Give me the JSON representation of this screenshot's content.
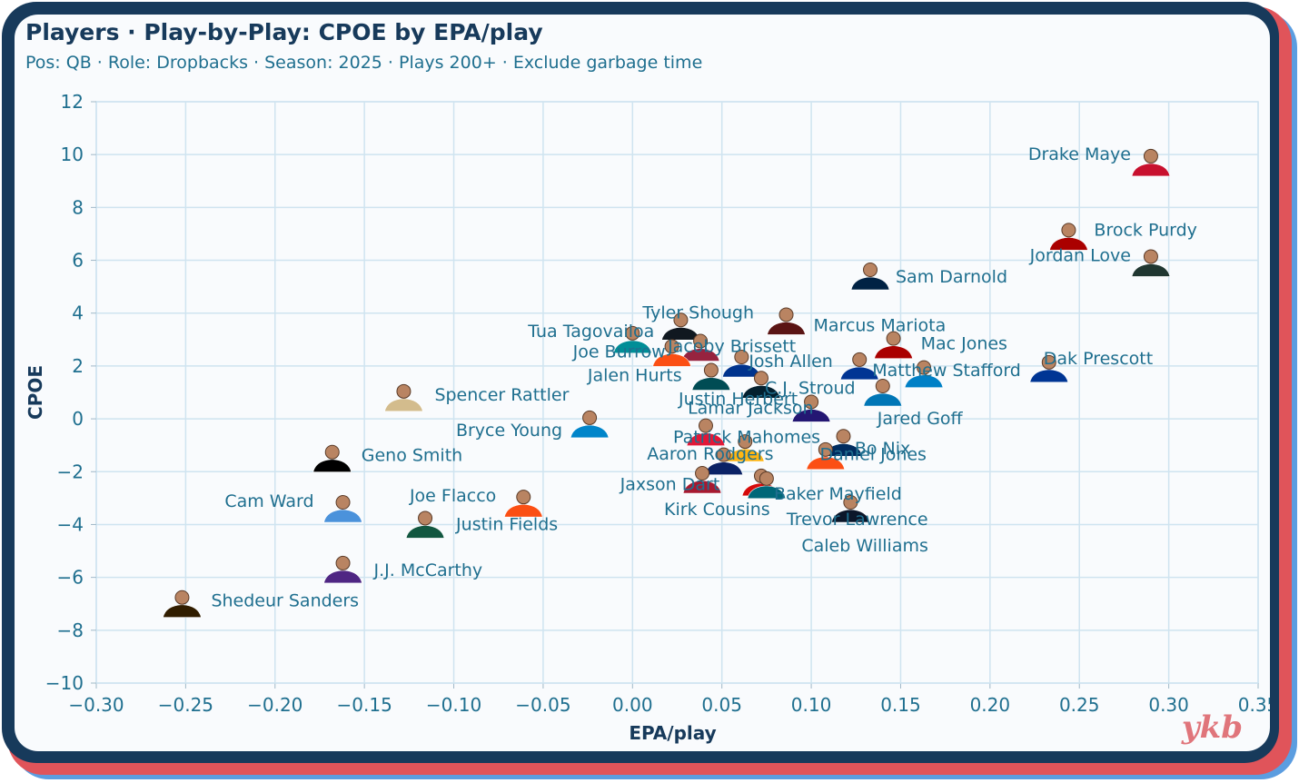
{
  "header": {
    "title": "Players · Play-by-Play: CPOE by EPA/play",
    "subtitle": "Pos: QB · Role: Dropbacks · Season: 2025 · Plays 200+ · Exclude garbage time"
  },
  "brand": "ykb",
  "colors": {
    "text": "#173a5b",
    "label": "#1f6f8f",
    "grid": "#cfe4f0",
    "frame_red": "#e0545a",
    "frame_blue": "#5b9de0"
  },
  "chart_data": {
    "type": "scatter",
    "xlabel": "EPA/play",
    "ylabel": "CPOE",
    "xlim": [
      -0.3,
      0.35
    ],
    "ylim": [
      -10,
      12
    ],
    "xticks": [
      "−0.30",
      "−0.25",
      "−0.20",
      "−0.15",
      "−0.10",
      "−0.05",
      "0.00",
      "0.05",
      "0.10",
      "0.15",
      "0.20",
      "0.25",
      "0.30",
      "0.35"
    ],
    "yticks": [
      "12",
      "10",
      "8",
      "6",
      "4",
      "2",
      "0",
      "−2",
      "−4",
      "−6",
      "−8",
      "−10"
    ],
    "grid": true,
    "points": [
      {
        "name": "Drake Maye",
        "x": 0.29,
        "y": 9.7,
        "jersey": "#c8102e"
      },
      {
        "name": "Brock Purdy",
        "x": 0.244,
        "y": 6.9,
        "jersey": "#aa0000"
      },
      {
        "name": "Jordan Love",
        "x": 0.29,
        "y": 5.9,
        "jersey": "#203731"
      },
      {
        "name": "Sam Darnold",
        "x": 0.133,
        "y": 5.4,
        "jersey": "#002244"
      },
      {
        "name": "Tyler Shough",
        "x": 0.027,
        "y": 3.5,
        "jersey": "#101820"
      },
      {
        "name": "Marcus Mariota",
        "x": 0.086,
        "y": 3.7,
        "jersey": "#5a1414"
      },
      {
        "name": "Tua Tagovailoa",
        "x": 0.0,
        "y": 3.0,
        "jersey": "#008e97"
      },
      {
        "name": "Jacoby Brissett",
        "x": 0.038,
        "y": 2.7,
        "jersey": "#97233f"
      },
      {
        "name": "Joe Burrow",
        "x": 0.022,
        "y": 2.5,
        "jersey": "#fb4f14"
      },
      {
        "name": "Josh Allen",
        "x": 0.061,
        "y": 2.1,
        "jersey": "#00338d"
      },
      {
        "name": "Mac Jones",
        "x": 0.146,
        "y": 2.8,
        "jersey": "#aa0000"
      },
      {
        "name": "Matthew Stafford",
        "x": 0.127,
        "y": 2.0,
        "jersey": "#003594"
      },
      {
        "name": "Dak Prescott",
        "x": 0.233,
        "y": 1.9,
        "jersey": "#003594"
      },
      {
        "name": "Jalen Hurts",
        "x": 0.044,
        "y": 1.6,
        "jersey": "#004c54"
      },
      {
        "name": "C.J. Stroud",
        "x": 0.072,
        "y": 1.3,
        "jersey": "#03202f"
      },
      {
        "name": "Justin Herbert",
        "x": 0.163,
        "y": 1.7,
        "jersey": "#0080c6"
      },
      {
        "name": "Jared Goff",
        "x": 0.14,
        "y": 1.0,
        "jersey": "#0076b6"
      },
      {
        "name": "Lamar Jackson",
        "x": 0.1,
        "y": 0.4,
        "jersey": "#241773"
      },
      {
        "name": "Daniel Jones",
        "x": 0.118,
        "y": -0.9,
        "jersey": "#002c5f"
      },
      {
        "name": "Spencer Rattler",
        "x": -0.128,
        "y": 0.8,
        "jersey": "#d3bc8d"
      },
      {
        "name": "Bryce Young",
        "x": -0.024,
        "y": -0.2,
        "jersey": "#0085ca"
      },
      {
        "name": "Patrick Mahomes",
        "x": 0.041,
        "y": -0.5,
        "jersey": "#e31837"
      },
      {
        "name": "Bo Nix",
        "x": 0.108,
        "y": -1.4,
        "jersey": "#fb4f14"
      },
      {
        "name": "Aaron Rodgers",
        "x": 0.063,
        "y": -1.1,
        "jersey": "#ffb612"
      },
      {
        "name": "Geno Smith",
        "x": -0.168,
        "y": -1.5,
        "jersey": "#000000"
      },
      {
        "name": "Jaxson Dart",
        "x": 0.051,
        "y": -1.6,
        "jersey": "#0b2265"
      },
      {
        "name": "Baker Mayfield",
        "x": 0.072,
        "y": -2.4,
        "jersey": "#d50a0a"
      },
      {
        "name": "Kirk Cousins",
        "x": 0.039,
        "y": -2.3,
        "jersey": "#a71930"
      },
      {
        "name": "Trevor Lawrence",
        "x": 0.075,
        "y": -2.5,
        "jersey": "#006778"
      },
      {
        "name": "Caleb Williams",
        "x": 0.122,
        "y": -3.4,
        "jersey": "#0b162a"
      },
      {
        "name": "Cam Ward",
        "x": -0.162,
        "y": -3.4,
        "jersey": "#4b92db"
      },
      {
        "name": "Joe Flacco",
        "x": -0.061,
        "y": -3.2,
        "jersey": "#fb4f14"
      },
      {
        "name": "Justin Fields",
        "x": -0.116,
        "y": -4.0,
        "jersey": "#125740"
      },
      {
        "name": "J.J. McCarthy",
        "x": -0.162,
        "y": -5.7,
        "jersey": "#4f2683"
      },
      {
        "name": "Shedeur Sanders",
        "x": -0.252,
        "y": -7.0,
        "jersey": "#311d00"
      }
    ]
  }
}
